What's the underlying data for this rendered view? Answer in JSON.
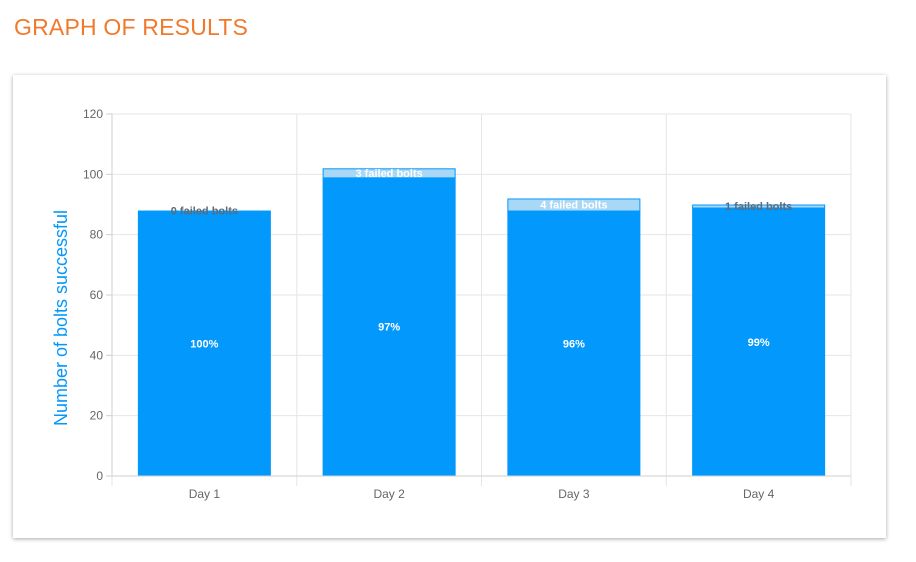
{
  "page": {
    "title": "GRAPH OF RESULTS"
  },
  "colors": {
    "title": "#f07a2c",
    "bar_success": "#0398fc",
    "bar_failed": "#a9d8f7",
    "ylabel": "#0398fc",
    "failed_label_dark": "#5f6a75",
    "failed_label_light": "#ffffff"
  },
  "chart_data": {
    "type": "bar",
    "stacked": true,
    "categories": [
      "Day 1",
      "Day 2",
      "Day 3",
      "Day 4"
    ],
    "series": [
      {
        "values": [
          88,
          99,
          88,
          89
        ]
      },
      {
        "values": [
          0,
          3,
          4,
          1
        ]
      }
    ],
    "bar_labels": [
      "100%",
      "97%",
      "96%",
      "99%"
    ],
    "failed_labels": [
      "0 failed bolts",
      "3 failed bolts",
      "4 failed bolts",
      "1 failed bolts"
    ],
    "ylabel": "Number of bolts successful",
    "xlabel": "",
    "ylim": [
      0,
      120
    ],
    "yticks": [
      0,
      20,
      40,
      60,
      80,
      100,
      120
    ],
    "grid": true
  }
}
